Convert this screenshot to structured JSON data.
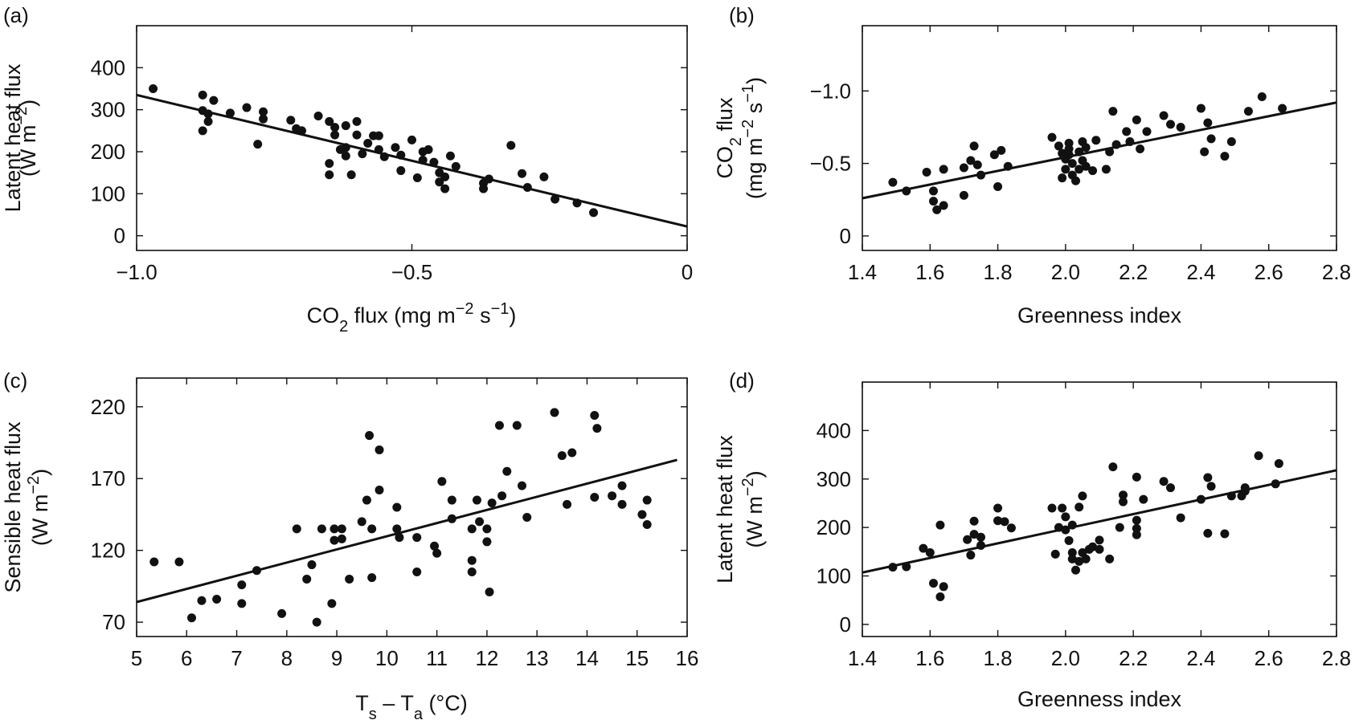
{
  "chart_data": [
    {
      "panel": "(a)",
      "type": "scatter",
      "xlabel_parts": [
        "CO",
        "2",
        " flux (mg m",
        "−2",
        " s",
        "−1",
        ")"
      ],
      "ylabel_lines": [
        "Latent heat flux",
        "(W m−2)"
      ],
      "xlim": [
        -1.0,
        0
      ],
      "ylim": [
        -35,
        500
      ],
      "xticks": [
        -1.0,
        -0.5,
        0
      ],
      "xtick_labels": [
        "−1.0",
        "−0.5",
        "0"
      ],
      "yticks": [
        0,
        100,
        200,
        300,
        400
      ],
      "ytick_labels": [
        "0",
        "100",
        "200",
        "300",
        "400"
      ],
      "fit_line": {
        "x": [
          -1.0,
          0
        ],
        "y": [
          335,
          22
        ]
      },
      "points": [
        [
          -0.97,
          350
        ],
        [
          -0.88,
          335
        ],
        [
          -0.86,
          322
        ],
        [
          -0.88,
          298
        ],
        [
          -0.87,
          290
        ],
        [
          -0.87,
          272
        ],
        [
          -0.88,
          250
        ],
        [
          -0.83,
          292
        ],
        [
          -0.8,
          305
        ],
        [
          -0.77,
          295
        ],
        [
          -0.77,
          278
        ],
        [
          -0.78,
          218
        ],
        [
          -0.72,
          275
        ],
        [
          -0.71,
          255
        ],
        [
          -0.7,
          250
        ],
        [
          -0.67,
          285
        ],
        [
          -0.65,
          272
        ],
        [
          -0.64,
          258
        ],
        [
          -0.64,
          240
        ],
        [
          -0.65,
          172
        ],
        [
          -0.65,
          145
        ],
        [
          -0.62,
          262
        ],
        [
          -0.6,
          272
        ],
        [
          -0.6,
          240
        ],
        [
          -0.63,
          205
        ],
        [
          -0.62,
          210
        ],
        [
          -0.62,
          190
        ],
        [
          -0.61,
          145
        ],
        [
          -0.59,
          195
        ],
        [
          -0.58,
          220
        ],
        [
          -0.57,
          238
        ],
        [
          -0.56,
          238
        ],
        [
          -0.56,
          205
        ],
        [
          -0.55,
          188
        ],
        [
          -0.53,
          210
        ],
        [
          -0.52,
          192
        ],
        [
          -0.52,
          155
        ],
        [
          -0.5,
          228
        ],
        [
          -0.48,
          200
        ],
        [
          -0.48,
          180
        ],
        [
          -0.47,
          205
        ],
        [
          -0.46,
          175
        ],
        [
          -0.49,
          138
        ],
        [
          -0.45,
          150
        ],
        [
          -0.45,
          128
        ],
        [
          -0.44,
          140
        ],
        [
          -0.44,
          112
        ],
        [
          -0.43,
          190
        ],
        [
          -0.42,
          165
        ],
        [
          -0.37,
          125
        ],
        [
          -0.37,
          112
        ],
        [
          -0.36,
          135
        ],
        [
          -0.32,
          215
        ],
        [
          -0.3,
          148
        ],
        [
          -0.29,
          115
        ],
        [
          -0.26,
          140
        ],
        [
          -0.24,
          87
        ],
        [
          -0.2,
          78
        ],
        [
          -0.17,
          55
        ]
      ]
    },
    {
      "panel": "(b)",
      "type": "scatter",
      "xlabel": "Greenness index",
      "ylabel_lines_parts": [
        [
          "CO",
          "2",
          " flux"
        ],
        [
          "(mg m",
          "−2",
          " s",
          "−1",
          ")"
        ]
      ],
      "xlim": [
        1.4,
        2.8
      ],
      "ylim": [
        0.1,
        -1.45
      ],
      "xticks": [
        1.4,
        1.6,
        1.8,
        2.0,
        2.2,
        2.4,
        2.6,
        2.8
      ],
      "xtick_labels": [
        "1.4",
        "1.6",
        "1.8",
        "2.0",
        "2.2",
        "2.4",
        "2.6",
        "2.8"
      ],
      "yticks": [
        -1.0,
        -0.5,
        0
      ],
      "ytick_labels": [
        "−1.0",
        "−0.5",
        "0"
      ],
      "fit_line": {
        "x": [
          1.4,
          2.8
        ],
        "y": [
          -0.26,
          -0.92
        ]
      },
      "points": [
        [
          1.49,
          -0.37
        ],
        [
          1.53,
          -0.31
        ],
        [
          1.59,
          -0.44
        ],
        [
          1.61,
          -0.31
        ],
        [
          1.61,
          -0.24
        ],
        [
          1.62,
          -0.18
        ],
        [
          1.64,
          -0.46
        ],
        [
          1.64,
          -0.21
        ],
        [
          1.7,
          -0.47
        ],
        [
          1.7,
          -0.28
        ],
        [
          1.72,
          -0.52
        ],
        [
          1.73,
          -0.62
        ],
        [
          1.74,
          -0.49
        ],
        [
          1.75,
          -0.42
        ],
        [
          1.79,
          -0.56
        ],
        [
          1.8,
          -0.34
        ],
        [
          1.81,
          -0.59
        ],
        [
          1.83,
          -0.48
        ],
        [
          1.96,
          -0.68
        ],
        [
          1.98,
          -0.62
        ],
        [
          1.99,
          -0.57
        ],
        [
          1.99,
          -0.4
        ],
        [
          2.0,
          -0.53
        ],
        [
          2.0,
          -0.46
        ],
        [
          2.01,
          -0.64
        ],
        [
          2.01,
          -0.6
        ],
        [
          2.01,
          -0.56
        ],
        [
          2.02,
          -0.5
        ],
        [
          2.02,
          -0.42
        ],
        [
          2.03,
          -0.38
        ],
        [
          2.04,
          -0.58
        ],
        [
          2.04,
          -0.46
        ],
        [
          2.05,
          -0.65
        ],
        [
          2.05,
          -0.52
        ],
        [
          2.06,
          -0.61
        ],
        [
          2.06,
          -0.48
        ],
        [
          2.08,
          -0.45
        ],
        [
          2.09,
          -0.66
        ],
        [
          2.12,
          -0.46
        ],
        [
          2.13,
          -0.58
        ],
        [
          2.14,
          -0.86
        ],
        [
          2.15,
          -0.63
        ],
        [
          2.18,
          -0.72
        ],
        [
          2.19,
          -0.65
        ],
        [
          2.21,
          -0.8
        ],
        [
          2.22,
          -0.6
        ],
        [
          2.24,
          -0.72
        ],
        [
          2.29,
          -0.83
        ],
        [
          2.31,
          -0.77
        ],
        [
          2.34,
          -0.75
        ],
        [
          2.4,
          -0.88
        ],
        [
          2.41,
          -0.58
        ],
        [
          2.42,
          -0.78
        ],
        [
          2.43,
          -0.67
        ],
        [
          2.47,
          -0.55
        ],
        [
          2.49,
          -0.65
        ],
        [
          2.54,
          -0.86
        ],
        [
          2.58,
          -0.96
        ],
        [
          2.64,
          -0.88
        ]
      ]
    },
    {
      "panel": "(c)",
      "type": "scatter",
      "xlabel_parts": [
        "T",
        "s",
        " – T",
        "a",
        " (°C)"
      ],
      "ylabel_lines": [
        "Sensible heat flux",
        "(W m−2)"
      ],
      "xlim": [
        5,
        16
      ],
      "ylim": [
        60,
        240
      ],
      "xticks": [
        5,
        6,
        7,
        8,
        9,
        10,
        11,
        12,
        13,
        14,
        15,
        16
      ],
      "xtick_labels": [
        "5",
        "6",
        "7",
        "8",
        "9",
        "10",
        "11",
        "12",
        "13",
        "14",
        "15",
        "16"
      ],
      "yticks": [
        70,
        120,
        170,
        220
      ],
      "ytick_labels": [
        "70",
        "120",
        "170",
        "220"
      ],
      "fit_line": {
        "x": [
          5,
          15.8
        ],
        "y": [
          84,
          183
        ]
      },
      "points": [
        [
          5.35,
          112
        ],
        [
          5.85,
          112
        ],
        [
          6.1,
          73
        ],
        [
          6.3,
          85
        ],
        [
          6.6,
          86
        ],
        [
          7.1,
          96
        ],
        [
          7.1,
          83
        ],
        [
          7.4,
          106
        ],
        [
          7.9,
          76
        ],
        [
          8.2,
          135
        ],
        [
          8.4,
          100
        ],
        [
          8.5,
          110
        ],
        [
          8.6,
          70
        ],
        [
          8.7,
          135
        ],
        [
          8.9,
          83
        ],
        [
          8.95,
          135
        ],
        [
          8.95,
          127
        ],
        [
          9.1,
          135
        ],
        [
          9.1,
          128
        ],
        [
          9.25,
          100
        ],
        [
          9.5,
          140
        ],
        [
          9.6,
          155
        ],
        [
          9.65,
          200
        ],
        [
          9.7,
          101
        ],
        [
          9.7,
          135
        ],
        [
          9.85,
          190
        ],
        [
          9.85,
          162
        ],
        [
          10.2,
          150
        ],
        [
          10.2,
          135
        ],
        [
          10.25,
          129
        ],
        [
          10.6,
          129
        ],
        [
          10.6,
          105
        ],
        [
          10.95,
          123
        ],
        [
          11.0,
          118
        ],
        [
          11.1,
          168
        ],
        [
          11.3,
          155
        ],
        [
          11.3,
          142
        ],
        [
          11.7,
          135
        ],
        [
          11.7,
          113
        ],
        [
          11.7,
          105
        ],
        [
          11.8,
          155
        ],
        [
          11.85,
          140
        ],
        [
          12.0,
          135
        ],
        [
          12.0,
          126
        ],
        [
          12.05,
          91
        ],
        [
          12.1,
          153
        ],
        [
          12.25,
          207
        ],
        [
          12.3,
          158
        ],
        [
          12.4,
          175
        ],
        [
          12.6,
          207
        ],
        [
          12.7,
          165
        ],
        [
          12.8,
          143
        ],
        [
          13.35,
          216
        ],
        [
          13.5,
          186
        ],
        [
          13.6,
          152
        ],
        [
          13.7,
          188
        ],
        [
          14.15,
          214
        ],
        [
          14.15,
          157
        ],
        [
          14.2,
          205
        ],
        [
          14.5,
          158
        ],
        [
          14.7,
          165
        ],
        [
          14.7,
          152
        ],
        [
          15.1,
          145
        ],
        [
          15.2,
          155
        ],
        [
          15.2,
          138
        ]
      ]
    },
    {
      "panel": "(d)",
      "type": "scatter",
      "xlabel": "Greenness index",
      "ylabel_lines": [
        "Latent heat flux",
        "(W m−2)"
      ],
      "xlim": [
        1.4,
        2.8
      ],
      "ylim": [
        -25,
        500
      ],
      "xticks": [
        1.4,
        1.6,
        1.8,
        2.0,
        2.2,
        2.4,
        2.6,
        2.8
      ],
      "xtick_labels": [
        "1.4",
        "1.6",
        "1.8",
        "2.0",
        "2.2",
        "2.4",
        "2.6",
        "2.8"
      ],
      "yticks": [
        0,
        100,
        200,
        300,
        400
      ],
      "ytick_labels": [
        "0",
        "100",
        "200",
        "300",
        "400"
      ],
      "fit_line": {
        "x": [
          1.4,
          2.8
        ],
        "y": [
          107,
          318
        ]
      },
      "points": [
        [
          1.49,
          118
        ],
        [
          1.53,
          119
        ],
        [
          1.58,
          157
        ],
        [
          1.6,
          148
        ],
        [
          1.61,
          85
        ],
        [
          1.63,
          205
        ],
        [
          1.63,
          57
        ],
        [
          1.64,
          78
        ],
        [
          1.71,
          175
        ],
        [
          1.72,
          143
        ],
        [
          1.73,
          213
        ],
        [
          1.73,
          186
        ],
        [
          1.75,
          180
        ],
        [
          1.75,
          163
        ],
        [
          1.8,
          240
        ],
        [
          1.8,
          214
        ],
        [
          1.82,
          212
        ],
        [
          1.84,
          199
        ],
        [
          1.96,
          240
        ],
        [
          1.97,
          145
        ],
        [
          1.98,
          200
        ],
        [
          1.99,
          240
        ],
        [
          2.0,
          222
        ],
        [
          2.0,
          195
        ],
        [
          2.01,
          173
        ],
        [
          2.02,
          205
        ],
        [
          2.02,
          148
        ],
        [
          2.02,
          135
        ],
        [
          2.03,
          112
        ],
        [
          2.04,
          130
        ],
        [
          2.04,
          242
        ],
        [
          2.05,
          265
        ],
        [
          2.05,
          148
        ],
        [
          2.06,
          135
        ],
        [
          2.07,
          155
        ],
        [
          2.08,
          160
        ],
        [
          2.1,
          174
        ],
        [
          2.1,
          155
        ],
        [
          2.13,
          135
        ],
        [
          2.14,
          325
        ],
        [
          2.16,
          200
        ],
        [
          2.17,
          267
        ],
        [
          2.17,
          253
        ],
        [
          2.21,
          304
        ],
        [
          2.21,
          215
        ],
        [
          2.21,
          198
        ],
        [
          2.21,
          185
        ],
        [
          2.23,
          258
        ],
        [
          2.29,
          295
        ],
        [
          2.31,
          282
        ],
        [
          2.34,
          220
        ],
        [
          2.4,
          258
        ],
        [
          2.42,
          303
        ],
        [
          2.42,
          188
        ],
        [
          2.43,
          285
        ],
        [
          2.47,
          187
        ],
        [
          2.49,
          265
        ],
        [
          2.52,
          265
        ],
        [
          2.53,
          282
        ],
        [
          2.53,
          275
        ],
        [
          2.57,
          348
        ],
        [
          2.62,
          290
        ],
        [
          2.63,
          332
        ]
      ]
    }
  ]
}
